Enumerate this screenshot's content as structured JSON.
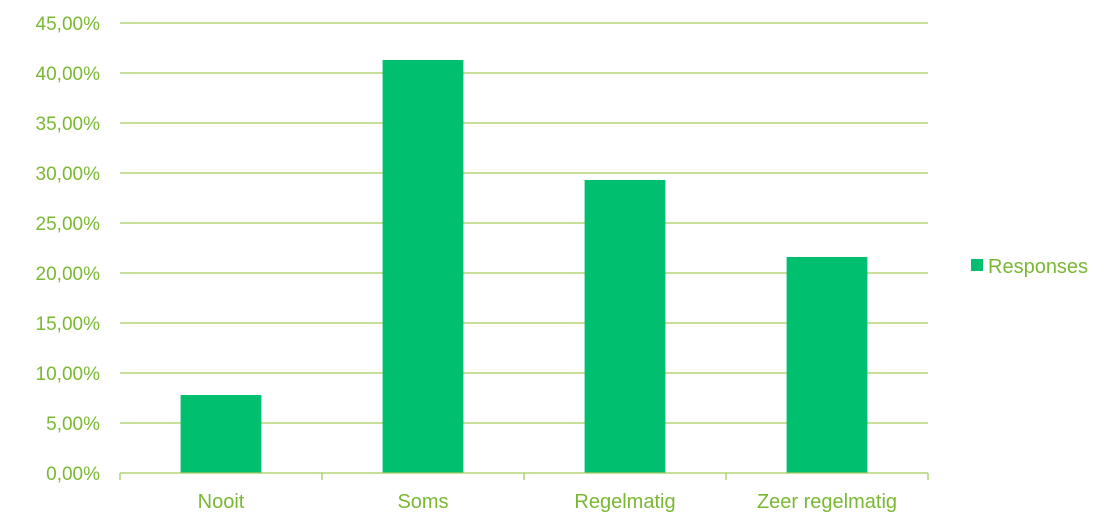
{
  "chart_data": {
    "type": "bar",
    "title": "",
    "xlabel": "",
    "ylabel": "",
    "categories": [
      "Nooit",
      "Soms",
      "Regelmatig",
      "Zeer regelmatig"
    ],
    "series": [
      {
        "name": "Responses",
        "values": [
          7.8,
          41.3,
          29.3,
          21.6
        ]
      }
    ],
    "ylim": [
      0,
      45
    ],
    "ytick_step": 5,
    "yticks": [
      "0,00%",
      "5,00%",
      "10,00%",
      "15,00%",
      "20,00%",
      "25,00%",
      "30,00%",
      "35,00%",
      "40,00%",
      "45,00%"
    ],
    "grid": true,
    "legend_position": "right",
    "colors": {
      "bar": "#00BF6F",
      "gridline": "#A6CC5E",
      "text": "#7AB833",
      "axis": "#A6CC5E"
    }
  }
}
